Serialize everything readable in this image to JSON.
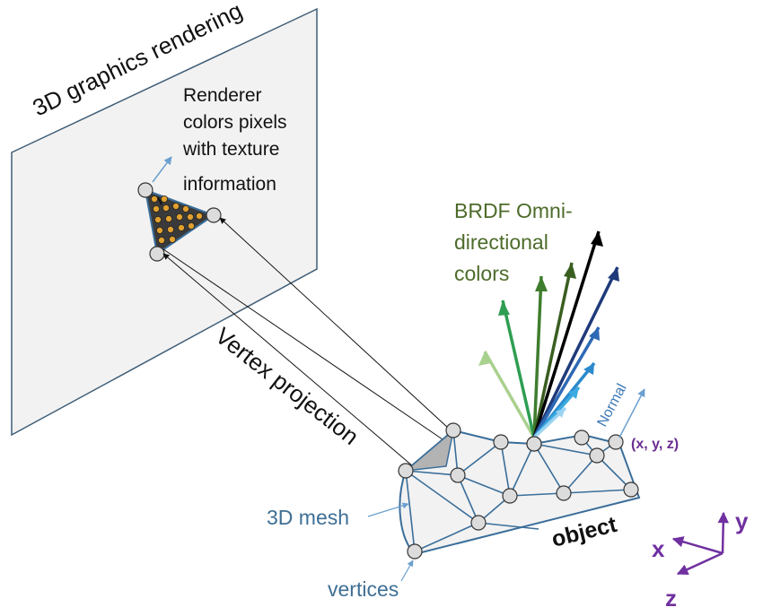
{
  "labels": {
    "rendering_title": "3D graphics rendering",
    "renderer_text": [
      "Renderer",
      "colors pixels",
      "with texture",
      "information"
    ],
    "brdf_text": [
      "BRDF Omni-",
      "directional",
      "colors"
    ],
    "vertex_projection": "Vertex projection",
    "mesh": "3D mesh",
    "vertices": "vertices",
    "object": "object",
    "normal": "Normal",
    "coordinates": "(x, y, z)"
  },
  "axes": {
    "x": "x",
    "y": "y",
    "z": "z"
  },
  "colors": {
    "plane_fill": "#f2f2f2",
    "plane_stroke": "#3f5e78",
    "text_dark": "#111111",
    "mesh_text": "#3f6f94",
    "brdf_text": "#4d6b2a",
    "normal_text": "#3d78b5",
    "coord_text": "#6b2c91",
    "axes_color": "#7030a0",
    "texture_dot": "#e1a02f",
    "vertex_fill": "#dcdcdc",
    "mesh_line": "#3a6e9a",
    "brdf_rays": [
      "#a9d18e",
      "#2e9e52",
      "#1f8a4a",
      "#1a6b3a",
      "#3a5e20",
      "#000000",
      "#1f3a7a",
      "#2d69b5",
      "#2b89cc",
      "#3aaae0",
      "#9bd3f2"
    ]
  }
}
